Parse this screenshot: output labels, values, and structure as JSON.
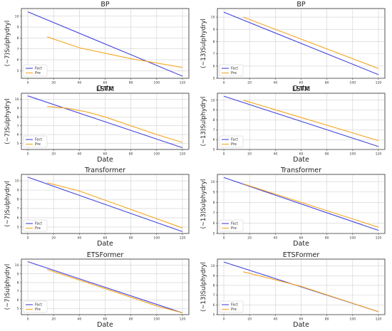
{
  "chart_data": [
    {
      "type": "line",
      "title": "BP",
      "xlabel": "Date",
      "ylabel": "(~7)Sulphydryl",
      "xlim": [
        -5,
        125
      ],
      "ylim": [
        4.3,
        10.7
      ],
      "xticks": [
        "0",
        "20",
        "40",
        "60",
        "80",
        "100",
        "120"
      ],
      "yticks": [
        "5",
        "6",
        "7",
        "8",
        "9",
        "10"
      ],
      "grid": true,
      "legend": "lower-left",
      "series": [
        {
          "name": "Fact",
          "color": "#4444dd",
          "x": [
            0,
            120
          ],
          "y": [
            10.4,
            4.5
          ]
        },
        {
          "name": "Pre",
          "color": "#f5a623",
          "x": [
            15,
            40,
            60,
            80,
            100,
            120
          ],
          "y": [
            8.1,
            7.1,
            6.6,
            6.1,
            5.7,
            5.3
          ]
        }
      ]
    },
    {
      "type": "line",
      "title": "BP",
      "xlabel": "Date",
      "ylabel": "(~13)Sulphydryl",
      "xlim": [
        -5,
        125
      ],
      "ylim": [
        5.0,
        10.7
      ],
      "xticks": [
        "0",
        "20",
        "40",
        "60",
        "80",
        "100",
        "120"
      ],
      "yticks": [
        "5",
        "6",
        "7",
        "8",
        "9",
        "10"
      ],
      "grid": true,
      "legend": "lower-left",
      "series": [
        {
          "name": "Fact",
          "color": "#4444dd",
          "x": [
            0,
            120
          ],
          "y": [
            10.4,
            5.3
          ]
        },
        {
          "name": "Pre",
          "color": "#f5a623",
          "x": [
            15,
            120
          ],
          "y": [
            10.0,
            5.8
          ]
        }
      ]
    },
    {
      "type": "line",
      "title": "LSTM",
      "xlabel": "Date",
      "ylabel": "(~7)Sulphydryl",
      "xlim": [
        -5,
        125
      ],
      "ylim": [
        4.3,
        10.7
      ],
      "xticks": [
        "0",
        "20",
        "40",
        "60",
        "80",
        "100",
        "120"
      ],
      "yticks": [
        "5",
        "6",
        "7",
        "8",
        "9",
        "10"
      ],
      "grid": true,
      "legend": "lower-left",
      "series": [
        {
          "name": "Fact",
          "color": "#4444dd",
          "x": [
            0,
            120
          ],
          "y": [
            10.4,
            4.5
          ]
        },
        {
          "name": "Pre",
          "color": "#f5a623",
          "x": [
            15,
            30,
            45,
            60,
            80,
            100,
            120
          ],
          "y": [
            9.2,
            9.0,
            8.6,
            8.0,
            7.0,
            6.0,
            5.1
          ]
        }
      ]
    },
    {
      "type": "line",
      "title": "LSTM",
      "xlabel": "Date",
      "ylabel": "(~13)Sulphydryl",
      "xlim": [
        -5,
        125
      ],
      "ylim": [
        5.0,
        10.7
      ],
      "xticks": [
        "0",
        "20",
        "40",
        "60",
        "80",
        "100",
        "120"
      ],
      "yticks": [
        "5",
        "6",
        "7",
        "8",
        "9",
        "10"
      ],
      "grid": true,
      "legend": "lower-left",
      "series": [
        {
          "name": "Fact",
          "color": "#4444dd",
          "x": [
            0,
            120
          ],
          "y": [
            10.4,
            5.3
          ]
        },
        {
          "name": "Pre",
          "color": "#f5a623",
          "x": [
            15,
            120
          ],
          "y": [
            10.0,
            5.9
          ]
        }
      ]
    },
    {
      "type": "line",
      "title": "Transformer",
      "xlabel": "Date",
      "ylabel": "(~7)Sulphydryl",
      "xlim": [
        -5,
        125
      ],
      "ylim": [
        4.3,
        10.7
      ],
      "xticks": [
        "0",
        "20",
        "40",
        "60",
        "80",
        "100",
        "120"
      ],
      "yticks": [
        "5",
        "6",
        "7",
        "8",
        "9",
        "10"
      ],
      "grid": true,
      "legend": "lower-left",
      "series": [
        {
          "name": "Fact",
          "color": "#4444dd",
          "x": [
            0,
            120
          ],
          "y": [
            10.4,
            4.5
          ]
        },
        {
          "name": "Pre",
          "color": "#f5a623",
          "x": [
            15,
            40,
            80,
            120
          ],
          "y": [
            9.8,
            8.9,
            6.9,
            4.9
          ]
        }
      ]
    },
    {
      "type": "line",
      "title": "Transformer",
      "xlabel": "Date",
      "ylabel": "(~13)Sulphydryl",
      "xlim": [
        -5,
        125
      ],
      "ylim": [
        5.0,
        10.7
      ],
      "xticks": [
        "0",
        "20",
        "40",
        "60",
        "80",
        "100",
        "120"
      ],
      "yticks": [
        "5",
        "6",
        "7",
        "8",
        "9",
        "10"
      ],
      "grid": true,
      "legend": "lower-left",
      "series": [
        {
          "name": "Fact",
          "color": "#4444dd",
          "x": [
            0,
            120
          ],
          "y": [
            10.4,
            5.3
          ]
        },
        {
          "name": "Pre",
          "color": "#f5a623",
          "x": [
            15,
            120
          ],
          "y": [
            9.8,
            5.6
          ]
        }
      ]
    },
    {
      "type": "line",
      "title": "ETSFormer",
      "xlabel": "Date",
      "ylabel": "(~7)Sulphydryl",
      "xlim": [
        -5,
        125
      ],
      "ylim": [
        4.3,
        10.7
      ],
      "xticks": [
        "0",
        "20",
        "40",
        "60",
        "80",
        "100",
        "120"
      ],
      "yticks": [
        "5",
        "6",
        "7",
        "8",
        "9",
        "10"
      ],
      "grid": true,
      "legend": "lower-left",
      "series": [
        {
          "name": "Fact",
          "color": "#4444dd",
          "x": [
            0,
            120
          ],
          "y": [
            10.4,
            4.5
          ]
        },
        {
          "name": "Pre",
          "color": "#f5a623",
          "x": [
            15,
            60,
            100,
            120
          ],
          "y": [
            9.5,
            7.3,
            5.3,
            4.5
          ]
        }
      ]
    },
    {
      "type": "line",
      "title": "ETSFormer",
      "xlabel": "Date",
      "ylabel": "(~13)Sulphydryl",
      "xlim": [
        -5,
        125
      ],
      "ylim": [
        5.0,
        10.7
      ],
      "xticks": [
        "0",
        "20",
        "40",
        "60",
        "80",
        "100",
        "120"
      ],
      "yticks": [
        "5",
        "6",
        "7",
        "8",
        "9",
        "10"
      ],
      "grid": true,
      "legend": "lower-left",
      "series": [
        {
          "name": "Fact",
          "color": "#4444dd",
          "x": [
            0,
            120
          ],
          "y": [
            10.4,
            5.3
          ]
        },
        {
          "name": "Pre",
          "color": "#f5a623",
          "x": [
            15,
            60,
            120
          ],
          "y": [
            9.4,
            7.9,
            5.3
          ]
        }
      ]
    }
  ]
}
